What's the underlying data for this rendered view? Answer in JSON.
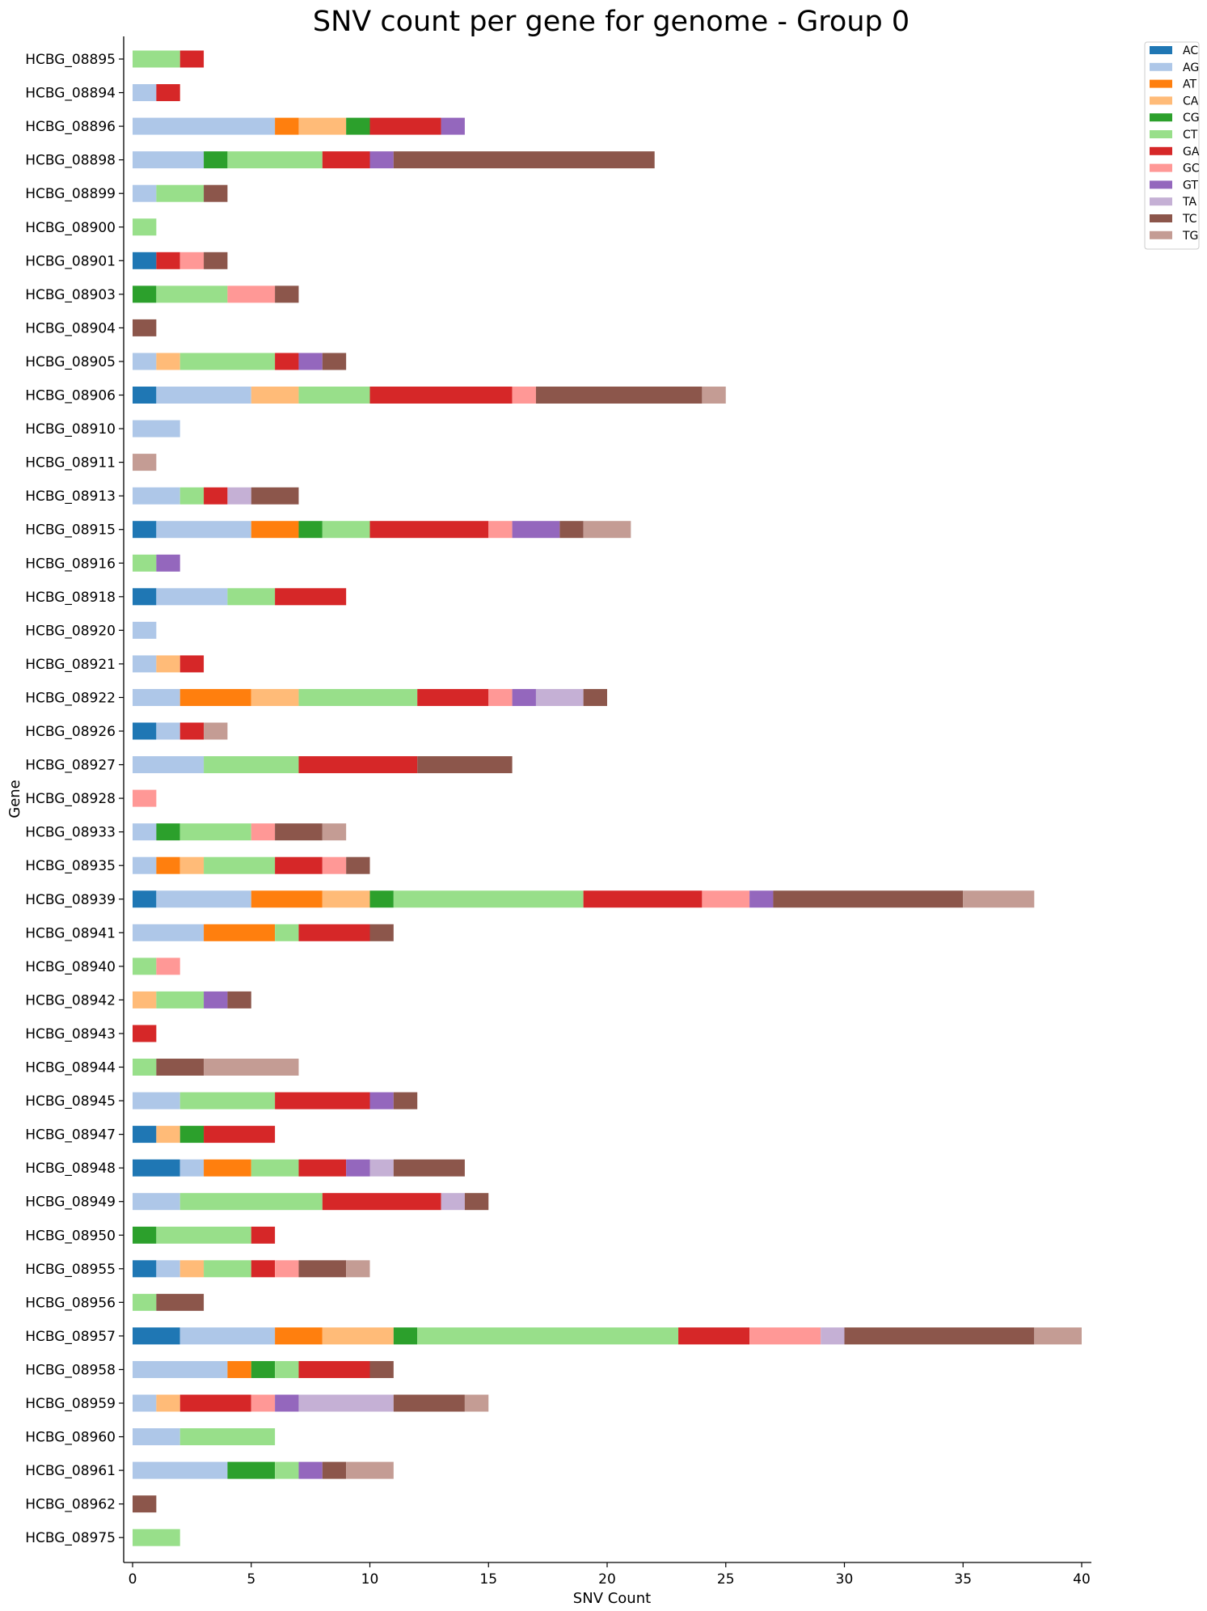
{
  "chart_data": {
    "type": "bar",
    "orientation": "horizontal",
    "stacked": true,
    "title": "SNV count per gene for genome - Group 0",
    "xlabel": "SNV Count",
    "ylabel": "Gene",
    "xlim": [
      0,
      40
    ],
    "xticks": [
      0,
      5,
      10,
      15,
      20,
      25,
      30,
      35,
      40
    ],
    "grid": false,
    "legend_position": "top-right outside",
    "categories": [
      "HCBG_08895",
      "HCBG_08894",
      "HCBG_08896",
      "HCBG_08898",
      "HCBG_08899",
      "HCBG_08900",
      "HCBG_08901",
      "HCBG_08903",
      "HCBG_08904",
      "HCBG_08905",
      "HCBG_08906",
      "HCBG_08910",
      "HCBG_08911",
      "HCBG_08913",
      "HCBG_08915",
      "HCBG_08916",
      "HCBG_08918",
      "HCBG_08920",
      "HCBG_08921",
      "HCBG_08922",
      "HCBG_08926",
      "HCBG_08927",
      "HCBG_08928",
      "HCBG_08933",
      "HCBG_08935",
      "HCBG_08939",
      "HCBG_08941",
      "HCBG_08940",
      "HCBG_08942",
      "HCBG_08943",
      "HCBG_08944",
      "HCBG_08945",
      "HCBG_08947",
      "HCBG_08948",
      "HCBG_08949",
      "HCBG_08950",
      "HCBG_08955",
      "HCBG_08956",
      "HCBG_08957",
      "HCBG_08958",
      "HCBG_08959",
      "HCBG_08960",
      "HCBG_08961",
      "HCBG_08962",
      "HCBG_08975"
    ],
    "series": [
      {
        "name": "AC",
        "color": "#1f77b4",
        "values": [
          0,
          0,
          0,
          0,
          0,
          0,
          1,
          0,
          0,
          0,
          1,
          0,
          0,
          0,
          1,
          0,
          1,
          0,
          0,
          0,
          1,
          0,
          0,
          0,
          0,
          1,
          0,
          0,
          0,
          0,
          0,
          0,
          1,
          2,
          0,
          0,
          1,
          0,
          2,
          0,
          0,
          0,
          0,
          0,
          0
        ]
      },
      {
        "name": "AG",
        "color": "#aec7e8",
        "values": [
          0,
          1,
          6,
          3,
          1,
          0,
          0,
          0,
          0,
          1,
          4,
          2,
          0,
          2,
          4,
          0,
          3,
          1,
          1,
          2,
          1,
          3,
          0,
          1,
          1,
          4,
          3,
          0,
          0,
          0,
          0,
          2,
          0,
          1,
          2,
          0,
          1,
          0,
          4,
          4,
          1,
          2,
          4,
          0,
          0
        ]
      },
      {
        "name": "AT",
        "color": "#ff7f0e",
        "values": [
          0,
          0,
          1,
          0,
          0,
          0,
          0,
          0,
          0,
          0,
          0,
          0,
          0,
          0,
          2,
          0,
          0,
          0,
          0,
          3,
          0,
          0,
          0,
          0,
          1,
          3,
          3,
          0,
          0,
          0,
          0,
          0,
          0,
          2,
          0,
          0,
          0,
          0,
          2,
          1,
          0,
          0,
          0,
          0,
          0
        ]
      },
      {
        "name": "CA",
        "color": "#ffbb78",
        "values": [
          0,
          0,
          2,
          0,
          0,
          0,
          0,
          0,
          0,
          1,
          2,
          0,
          0,
          0,
          0,
          0,
          0,
          0,
          1,
          2,
          0,
          0,
          0,
          0,
          1,
          2,
          0,
          0,
          1,
          0,
          0,
          0,
          1,
          0,
          0,
          0,
          1,
          0,
          3,
          0,
          1,
          0,
          0,
          0,
          0
        ]
      },
      {
        "name": "CG",
        "color": "#2ca02c",
        "values": [
          0,
          0,
          1,
          1,
          0,
          0,
          0,
          1,
          0,
          0,
          0,
          0,
          0,
          0,
          1,
          0,
          0,
          0,
          0,
          0,
          0,
          0,
          0,
          1,
          0,
          1,
          0,
          0,
          0,
          0,
          0,
          0,
          1,
          0,
          0,
          1,
          0,
          0,
          1,
          1,
          0,
          0,
          2,
          0,
          0
        ]
      },
      {
        "name": "CT",
        "color": "#98df8a",
        "values": [
          2,
          0,
          0,
          4,
          2,
          1,
          0,
          3,
          0,
          4,
          3,
          0,
          0,
          1,
          2,
          1,
          2,
          0,
          0,
          5,
          0,
          4,
          0,
          3,
          3,
          8,
          1,
          1,
          2,
          0,
          1,
          4,
          0,
          2,
          6,
          4,
          2,
          1,
          11,
          1,
          0,
          4,
          1,
          0,
          2
        ]
      },
      {
        "name": "GA",
        "color": "#d62728",
        "values": [
          1,
          1,
          3,
          2,
          0,
          0,
          1,
          0,
          0,
          1,
          6,
          0,
          0,
          1,
          5,
          0,
          3,
          0,
          1,
          3,
          1,
          5,
          0,
          0,
          2,
          5,
          3,
          0,
          0,
          1,
          0,
          4,
          3,
          2,
          5,
          1,
          1,
          0,
          3,
          3,
          3,
          0,
          0,
          0,
          0
        ]
      },
      {
        "name": "GC",
        "color": "#ff9896",
        "values": [
          0,
          0,
          0,
          0,
          0,
          0,
          1,
          2,
          0,
          0,
          1,
          0,
          0,
          0,
          1,
          0,
          0,
          0,
          0,
          1,
          0,
          0,
          1,
          1,
          1,
          2,
          0,
          1,
          0,
          0,
          0,
          0,
          0,
          0,
          0,
          0,
          1,
          0,
          3,
          0,
          1,
          0,
          0,
          0,
          0
        ]
      },
      {
        "name": "GT",
        "color": "#9467bd",
        "values": [
          0,
          0,
          1,
          1,
          0,
          0,
          0,
          0,
          0,
          1,
          0,
          0,
          0,
          0,
          2,
          1,
          0,
          0,
          0,
          1,
          0,
          0,
          0,
          0,
          0,
          1,
          0,
          0,
          1,
          0,
          0,
          1,
          0,
          1,
          0,
          0,
          0,
          0,
          0,
          0,
          1,
          0,
          1,
          0,
          0
        ]
      },
      {
        "name": "TA",
        "color": "#c5b0d5",
        "values": [
          0,
          0,
          0,
          0,
          0,
          0,
          0,
          0,
          0,
          0,
          0,
          0,
          0,
          1,
          0,
          0,
          0,
          0,
          0,
          2,
          0,
          0,
          0,
          0,
          0,
          0,
          0,
          0,
          0,
          0,
          0,
          0,
          0,
          1,
          1,
          0,
          0,
          0,
          1,
          0,
          4,
          0,
          0,
          0,
          0
        ]
      },
      {
        "name": "TC",
        "color": "#8c564b",
        "values": [
          0,
          0,
          0,
          11,
          1,
          0,
          1,
          1,
          1,
          1,
          7,
          0,
          0,
          2,
          1,
          0,
          0,
          0,
          0,
          1,
          0,
          4,
          0,
          2,
          1,
          8,
          1,
          0,
          1,
          0,
          2,
          1,
          0,
          3,
          1,
          0,
          2,
          2,
          8,
          1,
          3,
          0,
          1,
          1,
          0
        ]
      },
      {
        "name": "TG",
        "color": "#c49c94",
        "values": [
          0,
          0,
          0,
          0,
          0,
          0,
          0,
          0,
          0,
          0,
          1,
          0,
          1,
          0,
          2,
          0,
          0,
          0,
          0,
          0,
          1,
          0,
          0,
          1,
          0,
          3,
          0,
          0,
          0,
          0,
          4,
          0,
          0,
          0,
          0,
          0,
          1,
          0,
          2,
          0,
          1,
          0,
          2,
          0,
          0
        ]
      }
    ]
  }
}
